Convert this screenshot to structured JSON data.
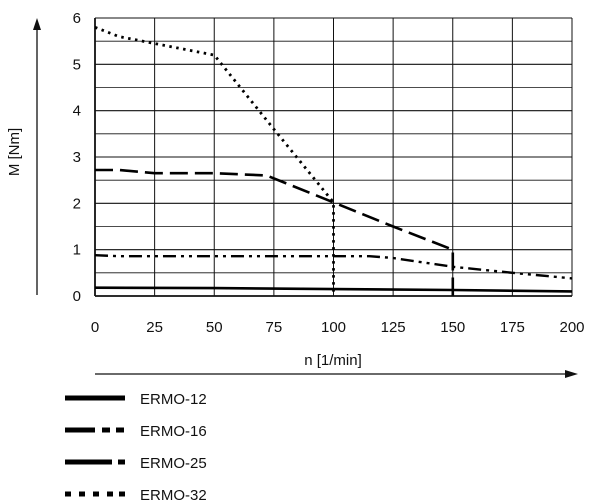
{
  "chart_data": {
    "type": "line",
    "title": "",
    "xlabel": "n [1/min]",
    "ylabel": "M [Nm]",
    "xlim": [
      0,
      200
    ],
    "ylim": [
      0,
      6
    ],
    "x_ticks": [
      "0",
      "25",
      "50",
      "75",
      "100",
      "125",
      "150",
      "175",
      "200"
    ],
    "y_ticks": [
      "0",
      "1",
      "2",
      "3",
      "4",
      "5",
      "6"
    ],
    "grid": true,
    "legend_position": "bottom",
    "series": [
      {
        "name": "ERMO-12",
        "style": "solid",
        "color": "#000000",
        "points": [
          [
            0,
            0.18
          ],
          [
            50,
            0.17
          ],
          [
            100,
            0.15
          ],
          [
            150,
            0.13
          ],
          [
            200,
            0.1
          ]
        ]
      },
      {
        "name": "ERMO-16",
        "style": "dash-dot-dot",
        "color": "#000000",
        "points": [
          [
            0,
            0.88
          ],
          [
            10,
            0.86
          ],
          [
            50,
            0.86
          ],
          [
            100,
            0.86
          ],
          [
            115,
            0.86
          ],
          [
            125,
            0.82
          ],
          [
            150,
            0.63
          ],
          [
            175,
            0.5
          ],
          [
            200,
            0.38
          ]
        ]
      },
      {
        "name": "ERMO-25",
        "style": "long-dash",
        "color": "#000000",
        "points": [
          [
            0,
            2.72
          ],
          [
            10,
            2.72
          ],
          [
            25,
            2.65
          ],
          [
            50,
            2.65
          ],
          [
            72,
            2.6
          ],
          [
            100,
            2.02
          ],
          [
            125,
            1.5
          ],
          [
            150,
            1.0
          ],
          [
            150,
            0
          ]
        ]
      },
      {
        "name": "ERMO-32",
        "style": "dotted",
        "color": "#000000",
        "points": [
          [
            0,
            5.8
          ],
          [
            10,
            5.6
          ],
          [
            25,
            5.45
          ],
          [
            50,
            5.2
          ],
          [
            75,
            3.6
          ],
          [
            100,
            2.02
          ],
          [
            100,
            0
          ]
        ]
      }
    ]
  }
}
